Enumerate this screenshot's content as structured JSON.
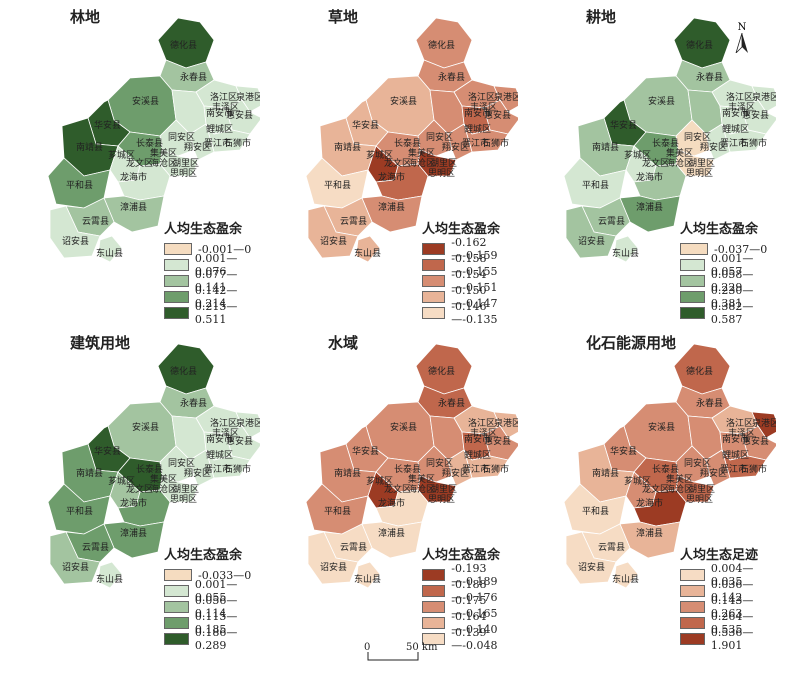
{
  "north_label": "N",
  "scale": {
    "zero": "0",
    "distance": "50 km"
  },
  "place_names": {
    "dehua": "德化县",
    "yongchun": "永春县",
    "anxi": "安溪县",
    "luojiang": "洛江区",
    "quangang": "泉港区",
    "nanan": "南安市",
    "huian": "惠安县",
    "fengze": "丰泽区",
    "licheng": "鲤城区",
    "tongan": "同安区",
    "jinjiang": "晋江市",
    "shishi": "石狮市",
    "xiangan": "翔安区",
    "jimei": "集美区",
    "huaan": "华安县",
    "changtai": "长泰县",
    "nanjing": "南靖县",
    "xiangcheng": "芗城区",
    "longwen": "龙文区",
    "haicang": "海沧区",
    "huli": "湖里区",
    "siming": "思明区",
    "pinghe": "平和县",
    "longhai": "龙海市",
    "zhangpu": "漳浦县",
    "yunxiao": "云霄县",
    "zhaoan": "诏安县",
    "dongshan": "东山县"
  },
  "panels": [
    {
      "title": "林地",
      "legend_title": "人均生态盈余",
      "classes": [
        {
          "label": "-0.001—0",
          "color": "#f5dcc0"
        },
        {
          "label": "0.001—0.076",
          "color": "#d4e7d2"
        },
        {
          "label": "0.077—0.141",
          "color": "#a3c4a0"
        },
        {
          "label": "0.142—0.214",
          "color": "#6e9d6c"
        },
        {
          "label": "0.215—0.511",
          "color": "#2f5c2b"
        }
      ],
      "regions": {
        "dehua": 4,
        "yongchun": 2,
        "anxi": 3,
        "luojiang": 1,
        "quangang": 1,
        "nanan": 1,
        "huian": 1,
        "licheng": 1,
        "jinjiang": 1,
        "tongan": 1,
        "xiangan": 1,
        "xiamen": 1,
        "huaan": 4,
        "changtai": 3,
        "nanjing": 4,
        "xiangcheng": 1,
        "pinghe": 3,
        "longhai": 1,
        "zhangpu": 2,
        "yunxiao": 2,
        "zhaoan": 1,
        "dongshan": 1
      }
    },
    {
      "title": "草地",
      "legend_title": "人均生态盈余",
      "classes": [
        {
          "label": "-0.162—-0.159",
          "color": "#9c3b23"
        },
        {
          "label": "-0.158—-0.155",
          "color": "#c0674c"
        },
        {
          "label": "-0.154—-0.151",
          "color": "#d68d73"
        },
        {
          "label": "-0.150—-0.147",
          "color": "#e8b498"
        },
        {
          "label": "-0.146—-0.135",
          "color": "#f6dcc4"
        }
      ],
      "regions": {
        "dehua": 2,
        "yongchun": 2,
        "anxi": 3,
        "luojiang": 2,
        "quangang": 2,
        "nanan": 2,
        "huian": 2,
        "licheng": 1,
        "jinjiang": 2,
        "tongan": 2,
        "xiangan": 2,
        "xiamen": 0,
        "huaan": 3,
        "changtai": 2,
        "nanjing": 3,
        "xiangcheng": 0,
        "pinghe": 4,
        "longhai": 1,
        "zhangpu": 2,
        "yunxiao": 3,
        "zhaoan": 3,
        "dongshan": 3
      }
    },
    {
      "title": "耕地",
      "legend_title": "人均生态盈余",
      "classes": [
        {
          "label": "-0.037—0",
          "color": "#f5dcc0"
        },
        {
          "label": "0.001—0.057",
          "color": "#d4e7d2"
        },
        {
          "label": "0.058—0.229",
          "color": "#a3c4a0"
        },
        {
          "label": "0.230—0.381",
          "color": "#6e9d6c"
        },
        {
          "label": "0.382—0.587",
          "color": "#2f5c2b"
        }
      ],
      "regions": {
        "dehua": 4,
        "yongchun": 2,
        "anxi": 2,
        "luojiang": 1,
        "quangang": 1,
        "nanan": 2,
        "huian": 1,
        "licheng": 1,
        "jinjiang": 1,
        "tongan": 0,
        "xiangan": 1,
        "xiamen": 0,
        "huaan": 4,
        "changtai": 3,
        "nanjing": 2,
        "xiangcheng": 1,
        "pinghe": 1,
        "longhai": 2,
        "zhangpu": 3,
        "yunxiao": 2,
        "zhaoan": 2,
        "dongshan": 1
      }
    },
    {
      "title": "建筑用地",
      "legend_title": "人均生态盈余",
      "classes": [
        {
          "label": "-0.033—0",
          "color": "#f5dcc0"
        },
        {
          "label": "0.001—0.055",
          "color": "#d4e7d2"
        },
        {
          "label": "0.056—0.114",
          "color": "#a3c4a0"
        },
        {
          "label": "0.115—0.185",
          "color": "#6e9d6c"
        },
        {
          "label": "0.186—0.289",
          "color": "#2f5c2b"
        }
      ],
      "regions": {
        "dehua": 4,
        "yongchun": 2,
        "anxi": 2,
        "luojiang": 1,
        "quangang": 1,
        "nanan": 1,
        "huian": 1,
        "licheng": 1,
        "jinjiang": 1,
        "tongan": 1,
        "xiangan": 1,
        "xiamen": 1,
        "huaan": 4,
        "changtai": 4,
        "nanjing": 3,
        "xiangcheng": 2,
        "pinghe": 3,
        "longhai": 3,
        "zhangpu": 3,
        "yunxiao": 3,
        "zhaoan": 2,
        "dongshan": 1
      }
    },
    {
      "title": "水域",
      "legend_title": "人均生态盈余",
      "classes": [
        {
          "label": "-0.193—-0.189",
          "color": "#9c3b23"
        },
        {
          "label": "-0.188—-0.176",
          "color": "#c0674c"
        },
        {
          "label": "-0.175—-0.165",
          "color": "#d68d73"
        },
        {
          "label": "-0.164—-0.140",
          "color": "#e8b498"
        },
        {
          "label": "-0.139—-0.048",
          "color": "#f6dcc4"
        }
      ],
      "regions": {
        "dehua": 1,
        "yongchun": 1,
        "anxi": 2,
        "luojiang": 3,
        "quangang": 3,
        "nanan": 2,
        "huian": 2,
        "licheng": 1,
        "jinjiang": 3,
        "tongan": 2,
        "xiangan": 3,
        "xiamen": 0,
        "huaan": 2,
        "changtai": 2,
        "nanjing": 2,
        "xiangcheng": 0,
        "pinghe": 2,
        "longhai": 4,
        "zhangpu": 4,
        "yunxiao": 4,
        "zhaoan": 4,
        "dongshan": 4
      }
    },
    {
      "title": "化石能源用地",
      "legend_title": "人均生态足迹",
      "classes": [
        {
          "label": "0.004—0.035",
          "color": "#f6dcc4"
        },
        {
          "label": "0.036—0.142",
          "color": "#e8b498"
        },
        {
          "label": "0.143—0.263",
          "color": "#d68d73"
        },
        {
          "label": "0.264—0.535",
          "color": "#c0674c"
        },
        {
          "label": "0.536—1.901",
          "color": "#9c3b23"
        }
      ],
      "regions": {
        "dehua": 3,
        "yongchun": 2,
        "anxi": 2,
        "luojiang": 1,
        "quangang": 4,
        "nanan": 2,
        "huian": 2,
        "licheng": 2,
        "jinjiang": 3,
        "tongan": 2,
        "xiangan": 2,
        "xiamen": 3,
        "huaan": 2,
        "changtai": 3,
        "nanjing": 1,
        "xiangcheng": 2,
        "pinghe": 0,
        "longhai": 4,
        "zhangpu": 1,
        "yunxiao": 0,
        "zhaoan": 0,
        "dongshan": 0
      }
    }
  ]
}
